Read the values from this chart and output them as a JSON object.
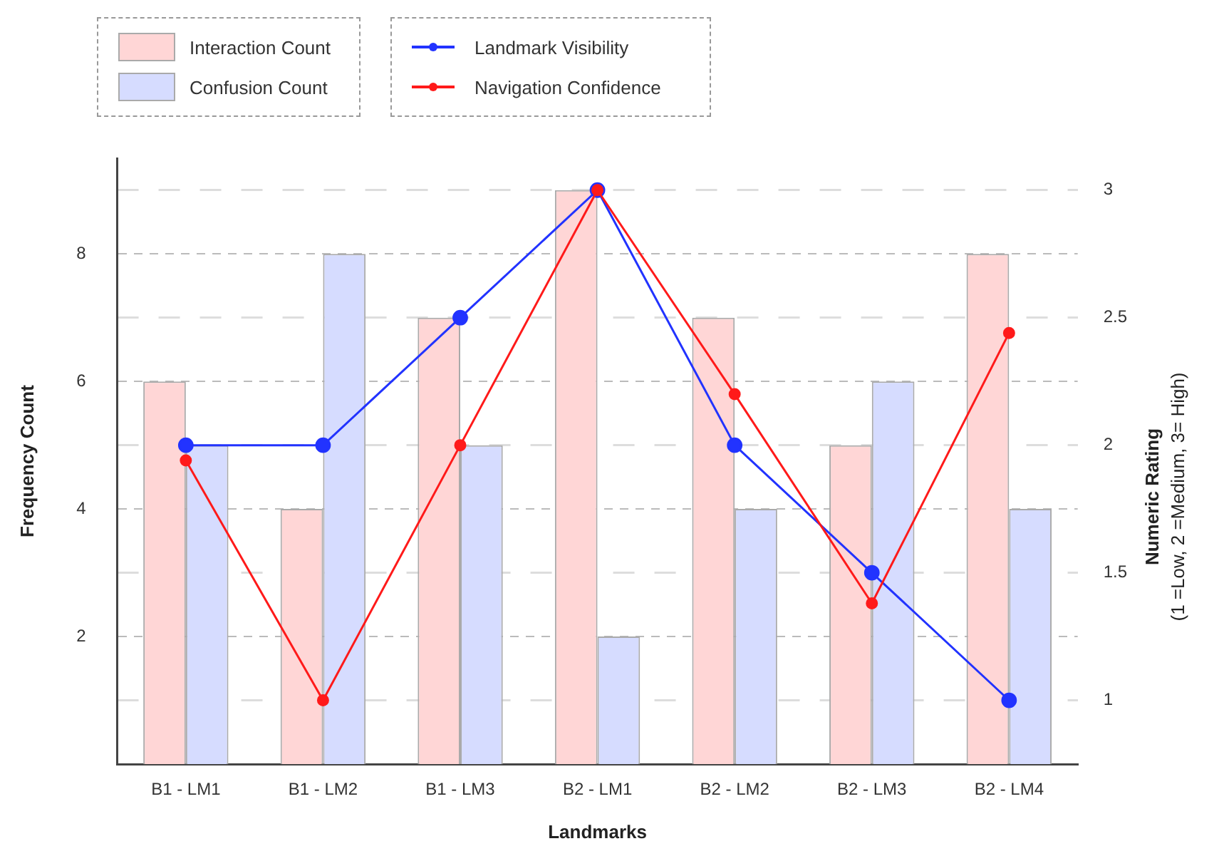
{
  "chart_data": {
    "type": "bar",
    "categories": [
      "B1 - LM1",
      "B1 - LM2",
      "B1 - LM3",
      "B2 - LM1",
      "B2 - LM2",
      "B2 - LM3",
      "B2 - LM4"
    ],
    "series": [
      {
        "name": "Interaction Count",
        "color": "#ffd6d6",
        "values": [
          6,
          4,
          7,
          9,
          7,
          5,
          8
        ]
      },
      {
        "name": "Confusion Count",
        "color": "#d6dcff",
        "values": [
          5,
          8,
          5,
          2,
          4,
          6,
          4
        ]
      },
      {
        "name": "Landmark Visibility",
        "type": "line",
        "axis": "y2",
        "color": "#2233ff",
        "values": [
          2,
          2,
          2.5,
          3,
          2,
          1.5,
          1
        ]
      },
      {
        "name": "Navigation Confidence",
        "type": "line",
        "axis": "y2",
        "color": "#ff1a1a",
        "values": [
          1.94,
          1,
          2,
          3,
          2.2,
          1.38,
          2.44
        ]
      }
    ],
    "xlabel": "Landmarks",
    "ylabel": "Frequency Count",
    "y2label": "Numeric Rating (1 =Low, 2 =Medium, 3= High)",
    "ylim": [
      0,
      9.5
    ],
    "yticks": [
      2,
      4,
      6,
      8
    ],
    "y2lim": [
      0.75,
      3.125
    ],
    "y2ticks": [
      1,
      1.5,
      2,
      2.5,
      3
    ],
    "grid": true,
    "legend": "top",
    "marker": "circle",
    "line_style": "solid"
  }
}
